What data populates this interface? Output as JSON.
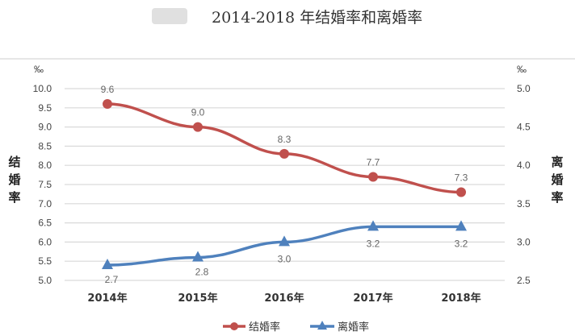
{
  "chart_data": {
    "type": "line",
    "title": "2014-2018 年结婚率和离婚率",
    "categories": [
      "2014年",
      "2015年",
      "2016年",
      "2017年",
      "2018年"
    ],
    "series": [
      {
        "name": "结婚率",
        "axis": "left",
        "color": "#c0504d",
        "marker": "circle",
        "values": [
          9.6,
          9.0,
          8.3,
          7.7,
          7.3
        ],
        "labels": [
          "9.6",
          "9.0",
          "8.3",
          "7.7",
          "7.3"
        ]
      },
      {
        "name": "离婚率",
        "axis": "right",
        "color": "#4f81bd",
        "marker": "triangle",
        "values": [
          2.7,
          2.8,
          3.0,
          3.2,
          3.2
        ],
        "labels": [
          "2.7",
          "2.8",
          "3.0",
          "3.2",
          "3.2"
        ]
      }
    ],
    "ylabel_left": "结婚率",
    "ylabel_right": "离婚率",
    "unit_left": "‰",
    "unit_right": "‰",
    "ylim_left": [
      5.0,
      10.0
    ],
    "ylim_right": [
      2.5,
      5.0
    ],
    "yticks_left": [
      "5.0",
      "5.5",
      "6.0",
      "6.5",
      "7.0",
      "7.5",
      "8.0",
      "8.5",
      "9.0",
      "9.5",
      "10.0"
    ],
    "yticks_right": [
      "2.5",
      "3.0",
      "3.5",
      "4.0",
      "4.5",
      "5.0"
    ],
    "grid": true,
    "legend": "bottom"
  }
}
